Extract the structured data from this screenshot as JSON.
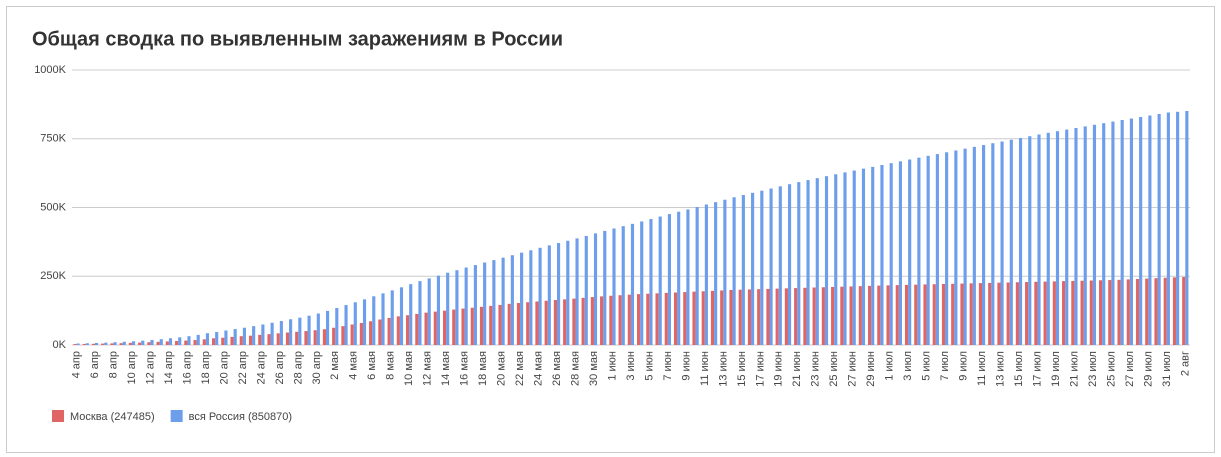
{
  "chart_data": {
    "type": "bar",
    "title": "Общая сводка по выявленным заражениям в России",
    "categories": [
      "4 апр",
      null,
      "6 апр",
      null,
      "8 апр",
      null,
      "10 апр",
      null,
      "12 апр",
      null,
      "14 апр",
      null,
      "16 апр",
      null,
      "18 апр",
      null,
      "20 апр",
      null,
      "22 апр",
      null,
      "24 апр",
      null,
      "26 апр",
      null,
      "28 апр",
      null,
      "30 апр",
      null,
      "2 мая",
      null,
      "4 мая",
      null,
      "6 мая",
      null,
      "8 мая",
      null,
      "10 мая",
      null,
      "12 мая",
      null,
      "14 мая",
      null,
      "16 мая",
      null,
      "18 мая",
      null,
      "20 мая",
      null,
      "22 мая",
      null,
      "24 мая",
      null,
      "26 мая",
      null,
      "28 мая",
      null,
      "30 мая",
      null,
      "1 июн",
      null,
      "3 июн",
      null,
      "5 июн",
      null,
      "7 июн",
      null,
      "9 июн",
      null,
      "11 июн",
      null,
      "13 июн",
      null,
      "15 июн",
      null,
      "17 июн",
      null,
      "19 июн",
      null,
      "21 июн",
      null,
      "23 июн",
      null,
      "25 июн",
      null,
      "27 июн",
      null,
      "29 июн",
      null,
      "1 июл",
      null,
      "3 июл",
      null,
      "5 июл",
      null,
      "7 июл",
      null,
      "9 июл",
      null,
      "11 июл",
      null,
      "13 июл",
      null,
      "15 июл",
      null,
      "17 июл",
      null,
      "19 июл",
      null,
      "21 июл",
      null,
      "23 июл",
      null,
      "25 июл",
      null,
      "27 июл",
      null,
      "29 июл",
      null,
      "31 июл",
      null,
      "2 авг"
    ],
    "series": [
      {
        "name": "Москва (247485)",
        "color": "#e06666",
        "values": [
          3357,
          3893,
          4484,
          5181,
          5841,
          6698,
          7822,
          8852,
          10158,
          11513,
          13002,
          14776,
          16146,
          18105,
          20754,
          24324,
          26350,
          29433,
          31981,
          33940,
          36897,
          39509,
          42480,
          45351,
          47954,
          50646,
          53739,
          57300,
          62658,
          68606,
          74668,
          80115,
          86361,
          92676,
          98522,
          104189,
          108226,
          113050,
          117627,
          121301,
          124951,
          128924,
          132407,
          135464,
          138969,
          142287,
          145690,
          149607,
          152677,
          155521,
          158237,
          160946,
          163559,
          165989,
          168703,
          171443,
          174257,
          176803,
          179000,
          181000,
          183000,
          185000,
          186500,
          188000,
          189500,
          191000,
          192500,
          194000,
          195500,
          197000,
          198500,
          200000,
          201000,
          202000,
          203000,
          204000,
          205000,
          206000,
          207000,
          208000,
          209000,
          210000,
          211000,
          212000,
          213000,
          214000,
          215000,
          216000,
          217000,
          217800,
          218600,
          219400,
          220200,
          221000,
          221800,
          222600,
          223400,
          224200,
          225000,
          225800,
          226600,
          227400,
          228200,
          229000,
          229800,
          230600,
          231400,
          232200,
          233000,
          233800,
          234600,
          235400,
          236200,
          237000,
          238500,
          240000,
          241500,
          243000,
          244500,
          246000,
          247485
        ]
      },
      {
        "name": "вся Россия (850870)",
        "color": "#6d9eeb",
        "values": [
          5389,
          6343,
          7497,
          8672,
          10131,
          11917,
          13584,
          15770,
          18328,
          21102,
          24490,
          27938,
          32008,
          36793,
          42853,
          47121,
          52763,
          57999,
          62773,
          68622,
          74588,
          80949,
          87147,
          93558,
          99399,
          106498,
          114431,
          124054,
          134687,
          145268,
          155370,
          165929,
          177160,
          187859,
          198676,
          209688,
          221344,
          232243,
          242271,
          252245,
          262843,
          272043,
          281752,
          290678,
          299941,
          308705,
          317554,
          326448,
          335882,
          344481,
          353427,
          362342,
          370680,
          379051,
          387623,
          396575,
          405843,
          414878,
          423741,
          432277,
          440538,
          449256,
          458102,
          467073,
          476043,
          484630,
          493023,
          501800,
          510761,
          519458,
          528267,
          537210,
          545458,
          553301,
          561091,
          569063,
          576952,
          584680,
          592280,
          599705,
          606881,
          613994,
          620794,
          627646,
          634437,
          641156,
          647849,
          654405,
          661165,
          667883,
          674515,
          681251,
          687862,
          694230,
          700792,
          707301,
          713936,
          720547,
          727162,
          733699,
          739947,
          746369,
          752797,
          759203,
          765437,
          771546,
          777486,
          783328,
          789190,
          795038,
          800849,
          806720,
          812485,
          818120,
          823515,
          828990,
          834499,
          839981,
          845443,
          848000,
          850870
        ]
      }
    ],
    "ylim": [
      0,
      1000000
    ],
    "yticks": [
      {
        "value": 0,
        "label": "0K"
      },
      {
        "value": 250000,
        "label": "250K"
      },
      {
        "value": 500000,
        "label": "500K"
      },
      {
        "value": 750000,
        "label": "750K"
      },
      {
        "value": 1000000,
        "label": "1000K"
      }
    ],
    "grid": true
  }
}
